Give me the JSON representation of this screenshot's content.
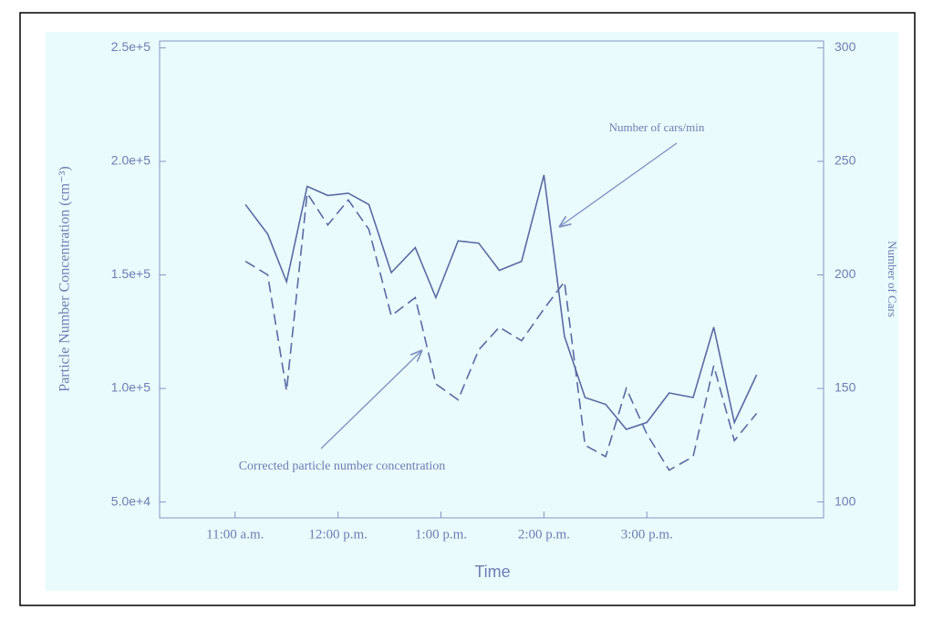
{
  "chart_data": {
    "type": "line",
    "x_label": "Time",
    "y_label": "Particle Number Concentration (cm⁻³)",
    "y2_label": "Number of Cars",
    "x": [
      666,
      679,
      690,
      702,
      714,
      726,
      738,
      751,
      765,
      777,
      790,
      802,
      814,
      827,
      840,
      852,
      864,
      876,
      888,
      900,
      913,
      927,
      939,
      951,
      964
    ],
    "xlim": [
      616,
      1003
    ],
    "xticks": [
      {
        "value": 660,
        "label": "11:00 a.m."
      },
      {
        "value": 720,
        "label": "12:00 p.m."
      },
      {
        "value": 780,
        "label": "1:00 p.m."
      },
      {
        "value": 840,
        "label": "2:00 p.m."
      },
      {
        "value": 900,
        "label": "3:00 p.m."
      }
    ],
    "ylim": [
      43000,
      253000
    ],
    "yticks": [
      {
        "value": 50000,
        "label": "5.0e+4"
      },
      {
        "value": 100000,
        "label": "1.0e+5"
      },
      {
        "value": 150000,
        "label": "1.5e+5"
      },
      {
        "value": 200000,
        "label": "2.0e+5"
      },
      {
        "value": 250000,
        "label": "2.5e+5"
      }
    ],
    "y2lim": [
      93,
      303
    ],
    "y2ticks": [
      100,
      150,
      200,
      250,
      300
    ],
    "series": [
      {
        "color": "#5b6aa3",
        "axis": "y2",
        "dashed": false,
        "values": [
          231,
          218,
          197,
          239,
          235,
          236,
          231,
          201,
          212,
          190,
          215,
          214,
          202,
          206,
          244,
          173,
          146,
          143,
          132,
          135,
          148,
          146,
          177,
          135,
          156
        ]
      },
      {
        "color": "#5b6aa3",
        "axis": "y",
        "dashed": true,
        "values": [
          156000,
          150000,
          99000,
          186000,
          172000,
          183000,
          170000,
          132000,
          140000,
          102000,
          95000,
          117000,
          127000,
          121000,
          135000,
          147000,
          75000,
          70000,
          100000,
          80000,
          64000,
          70000,
          110000,
          77000,
          89000
        ]
      }
    ],
    "annotations": [
      "Number of cars/min",
      "Corrected particle number concentration"
    ]
  }
}
